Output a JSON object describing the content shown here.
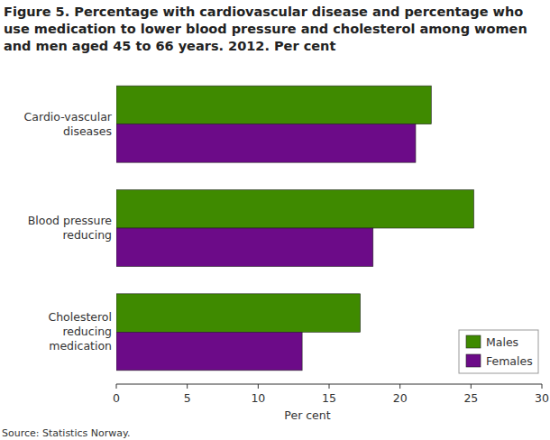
{
  "chart_data": {
    "type": "bar",
    "orientation": "horizontal",
    "title": "Figure 5. Percentage with cardiovascular disease and percentage who use medication to lower blood pressure and cholesterol among women and men aged 45 to 66 years. 2012. Per cent",
    "x_label": "Per cent",
    "source": "Source: Statistics Norway.",
    "categories": [
      "Cardio-vascular diseases",
      "Blood pressure reducing",
      "Cholesterol reducing medication"
    ],
    "series": [
      {
        "name": "Males",
        "color": "#3f8a00",
        "values": [
          22.2,
          25.2,
          17.2
        ]
      },
      {
        "name": "Females",
        "color": "#6c0b88",
        "values": [
          21.1,
          18.1,
          13.1
        ]
      }
    ],
    "xlim": [
      0,
      30
    ],
    "xticks": [
      0,
      5,
      10,
      15,
      20,
      25,
      30
    ],
    "grid": false,
    "legend": "lower right"
  }
}
